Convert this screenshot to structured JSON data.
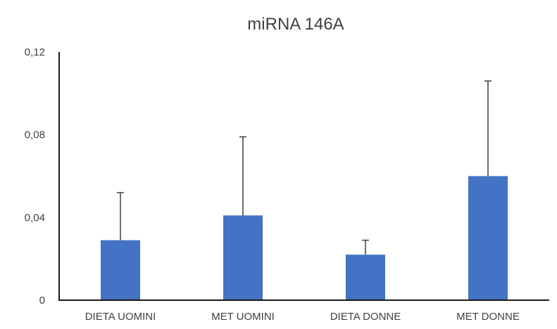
{
  "chart_data": {
    "type": "bar",
    "title": "miRNA 146A",
    "xlabel": "",
    "ylabel": "",
    "categories": [
      "DIETA UOMINI",
      "MET UOMINI",
      "DIETA DONNE",
      "MET DONNE"
    ],
    "values": [
      0.029,
      0.041,
      0.022,
      0.06
    ],
    "error_plus": [
      0.023,
      0.038,
      0.007,
      0.046
    ],
    "ylim": [
      0,
      0.12
    ],
    "yticks": [
      0,
      0.04,
      0.08,
      0.12
    ],
    "ytick_labels": [
      "0",
      "0,04",
      "0,08",
      "0,12"
    ],
    "grid": false,
    "legend": "none",
    "colors": {
      "bar": "#4472c4",
      "axis": "#1a1a1a",
      "text": "#404040"
    }
  }
}
